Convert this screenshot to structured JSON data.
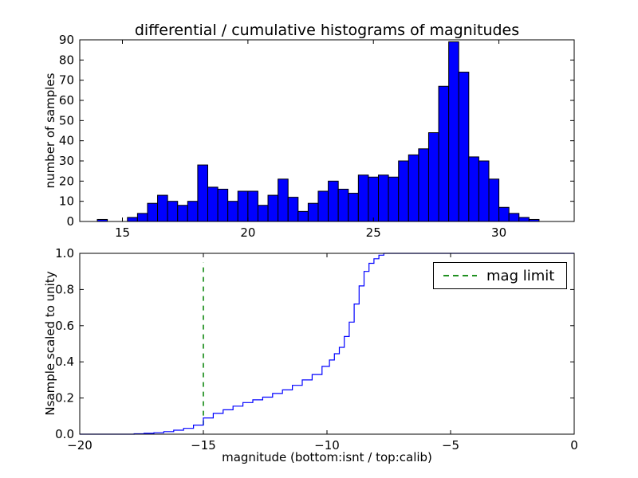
{
  "title": "differential / cumulative histograms of magnitudes",
  "colors": {
    "background": "#ffffff",
    "axis": "#000000",
    "bar_fill": "#0000ff",
    "bar_edge": "#000000",
    "line": "#0000ff",
    "mag_limit": "#008000"
  },
  "chart_data": [
    {
      "type": "bar",
      "name": "differential-histogram-calib",
      "ylabel": "number of samples",
      "xlim": [
        13.3,
        33.0
      ],
      "ylim": [
        0,
        90
      ],
      "xticks": [
        15,
        20,
        25,
        30
      ],
      "xtick_labels": [
        "15",
        "20",
        "25",
        "30"
      ],
      "yticks": [
        0,
        10,
        20,
        30,
        40,
        50,
        60,
        70,
        80,
        90
      ],
      "ytick_labels": [
        "0",
        "10",
        "20",
        "30",
        "40",
        "50",
        "60",
        "70",
        "80",
        "90"
      ],
      "grid": false,
      "bin_start": 14.0,
      "bin_width": 0.4,
      "counts": [
        1,
        0,
        0,
        2,
        4,
        9,
        13,
        10,
        8,
        10,
        28,
        17,
        16,
        10,
        15,
        15,
        8,
        13,
        21,
        12,
        5,
        9,
        15,
        20,
        16,
        14,
        23,
        22,
        23,
        22,
        30,
        33,
        36,
        44,
        67,
        89,
        74,
        32,
        30,
        21,
        7,
        4,
        2,
        1
      ]
    },
    {
      "type": "line",
      "name": "cumulative-histogram-isnt",
      "xlabel": "magnitude (bottom:isnt / top:calib)",
      "ylabel": "Nsample scaled to unity",
      "xlim": [
        -20,
        0
      ],
      "ylim": [
        0.0,
        1.0
      ],
      "xticks": [
        -20,
        -15,
        -10,
        -5,
        0
      ],
      "xtick_labels": [
        "−20",
        "−15",
        "−10",
        "−5",
        "0"
      ],
      "yticks": [
        0.0,
        0.2,
        0.4,
        0.6,
        0.8,
        1.0
      ],
      "ytick_labels": [
        "0.0",
        "0.2",
        "0.4",
        "0.6",
        "0.8",
        "1.0"
      ],
      "grid": false,
      "step": "after",
      "x": [
        -20,
        -17.8,
        -17.4,
        -17.0,
        -16.6,
        -16.2,
        -15.8,
        -15.4,
        -15.0,
        -14.6,
        -14.2,
        -13.8,
        -13.4,
        -13.0,
        -12.6,
        -12.2,
        -11.8,
        -11.4,
        -11.0,
        -10.6,
        -10.2,
        -9.9,
        -9.7,
        -9.5,
        -9.3,
        -9.1,
        -8.9,
        -8.7,
        -8.5,
        -8.3,
        -8.1,
        -7.9,
        -7.7
      ],
      "y": [
        0,
        0.002,
        0.005,
        0.008,
        0.014,
        0.022,
        0.032,
        0.05,
        0.09,
        0.115,
        0.135,
        0.155,
        0.175,
        0.19,
        0.205,
        0.225,
        0.245,
        0.27,
        0.3,
        0.33,
        0.375,
        0.41,
        0.445,
        0.48,
        0.54,
        0.62,
        0.72,
        0.82,
        0.9,
        0.945,
        0.97,
        0.99,
        1.0
      ],
      "mag_limit": {
        "x": -15,
        "ymin": 0.05,
        "ymax": 0.95
      },
      "legend_label": "mag limit",
      "legend_position": "upper right"
    }
  ]
}
